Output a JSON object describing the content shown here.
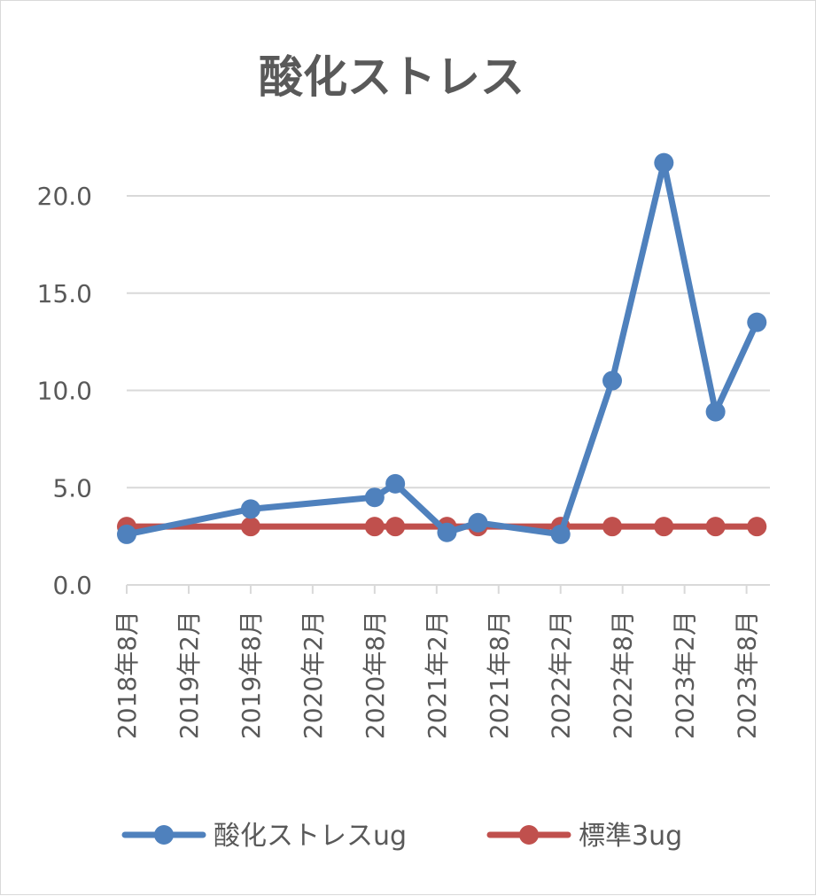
{
  "chart_data": {
    "type": "line",
    "title": "酸化ストレス",
    "xlabel": "",
    "ylabel": "",
    "ylim": [
      0,
      20
    ],
    "yticks": [
      "0.0",
      "5.0",
      "10.0",
      "15.0",
      "20.0"
    ],
    "x_tick_labels": [
      "2018年8月",
      "2019年2月",
      "2019年8月",
      "2020年2月",
      "2020年8月",
      "2021年2月",
      "2021年8月",
      "2022年2月",
      "2022年8月",
      "2023年2月",
      "2023年8月"
    ],
    "grid": true,
    "legend_position": "bottom",
    "series": [
      {
        "name": "酸化ストレスug",
        "color": "#4f81bd",
        "x": [
          "2018-08",
          "2019-08",
          "2020-08",
          "2020-10",
          "2021-03",
          "2021-06",
          "2022-02",
          "2022-07",
          "2022-12",
          "2023-05",
          "2023-09"
        ],
        "values": [
          2.6,
          3.9,
          4.5,
          5.2,
          2.7,
          3.2,
          2.6,
          10.5,
          21.7,
          8.9,
          13.5
        ]
      },
      {
        "name": "標準3ug",
        "color": "#c0504d",
        "x": [
          "2018-08",
          "2019-08",
          "2020-08",
          "2020-10",
          "2021-03",
          "2021-06",
          "2022-02",
          "2022-07",
          "2022-12",
          "2023-05",
          "2023-09"
        ],
        "values": [
          3,
          3,
          3,
          3,
          3,
          3,
          3,
          3,
          3,
          3,
          3
        ]
      }
    ]
  }
}
